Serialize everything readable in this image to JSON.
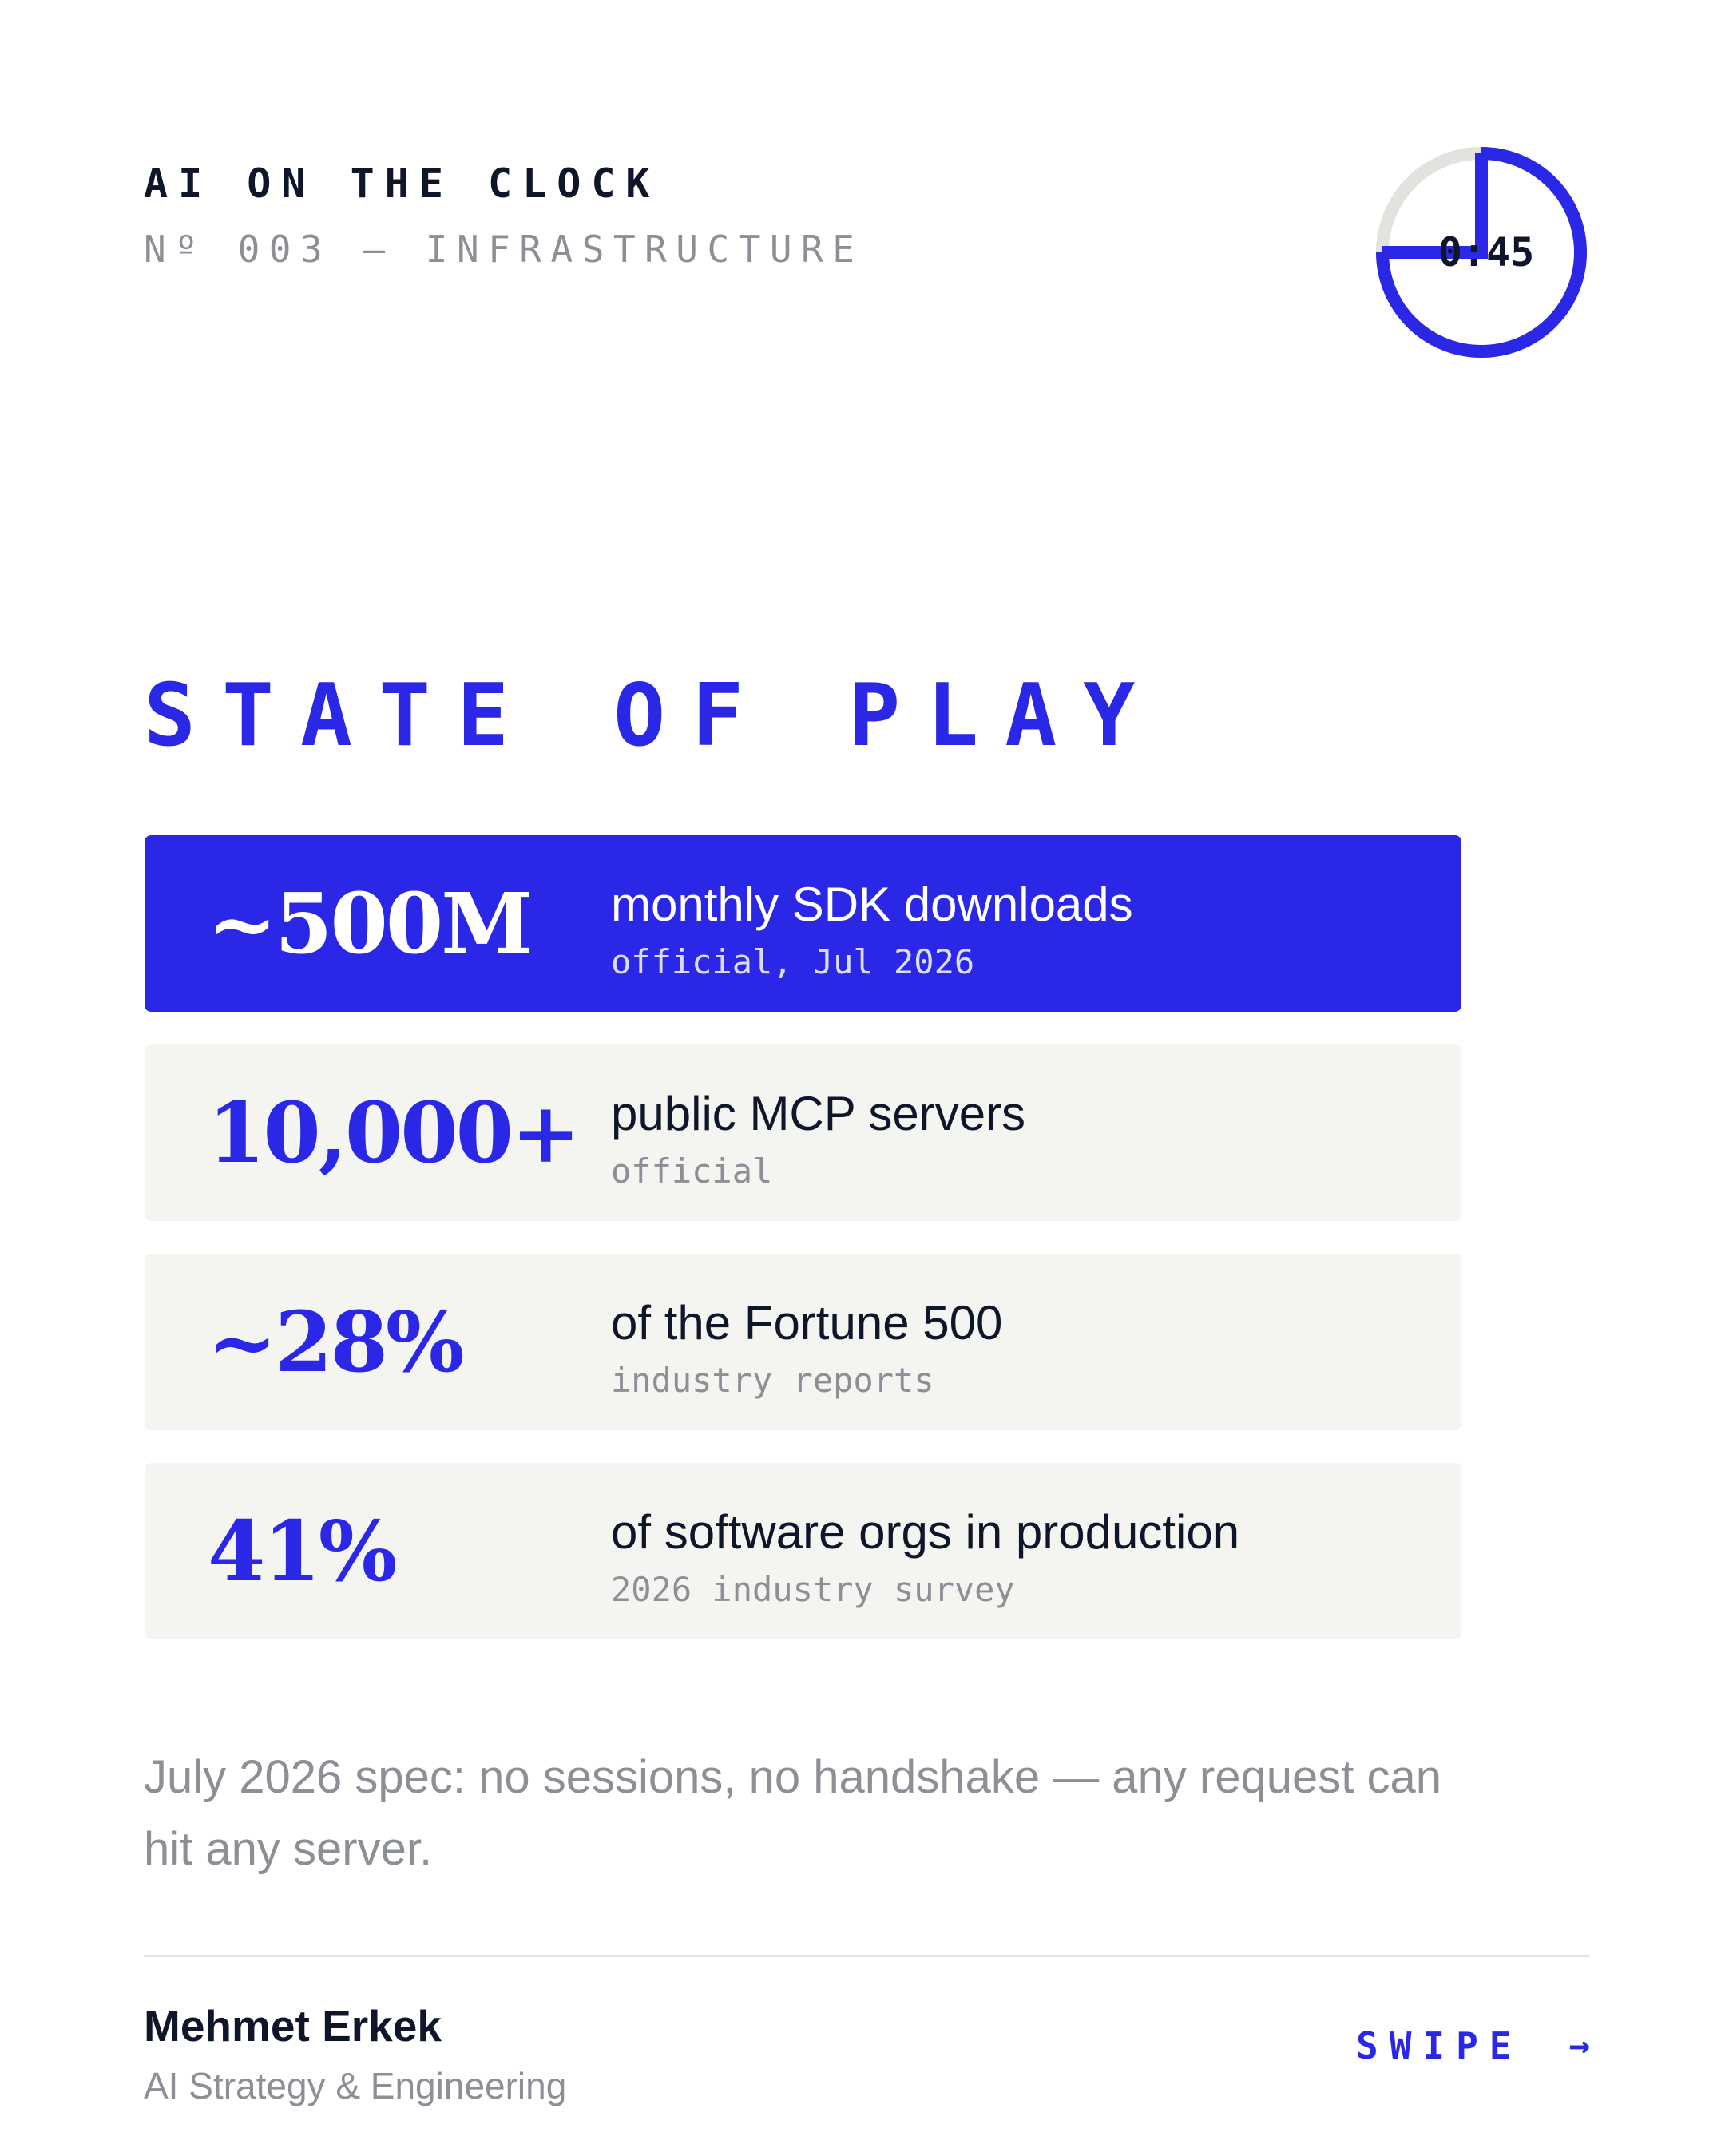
{
  "header": {
    "series_title": "AI ON THE CLOCK",
    "issue_line": "Nº 003 — INFRASTRUCTURE"
  },
  "timer": {
    "label": "0:45",
    "elapsed_fraction": 0.75,
    "colors": {
      "track": "#e2e2de",
      "fill": "#2a28e6"
    }
  },
  "section": {
    "title": "STATE OF PLAY"
  },
  "stats": [
    {
      "value": "~500M",
      "label": "monthly SDK downloads",
      "source": "official, Jul 2026",
      "highlighted": true
    },
    {
      "value": "10,000+",
      "label": "public MCP servers",
      "source": "official",
      "highlighted": false
    },
    {
      "value": "~28%",
      "label": "of the Fortune 500",
      "source": "industry reports",
      "highlighted": false
    },
    {
      "value": "41%",
      "label": "of software orgs in production",
      "source": "2026 industry survey",
      "highlighted": false
    }
  ],
  "note": "July 2026 spec: no sessions, no handshake — any request can hit any server.",
  "footer": {
    "author_name": "Mehmet Erkek",
    "author_role": "AI Strategy & Engineering",
    "swipe_label": "SWIPE",
    "swipe_icon": "arrow-right-icon"
  },
  "colors": {
    "accent": "#2a28e6",
    "text": "#10162a",
    "muted": "#8d8f96",
    "card_bg": "#f4f4f1"
  }
}
